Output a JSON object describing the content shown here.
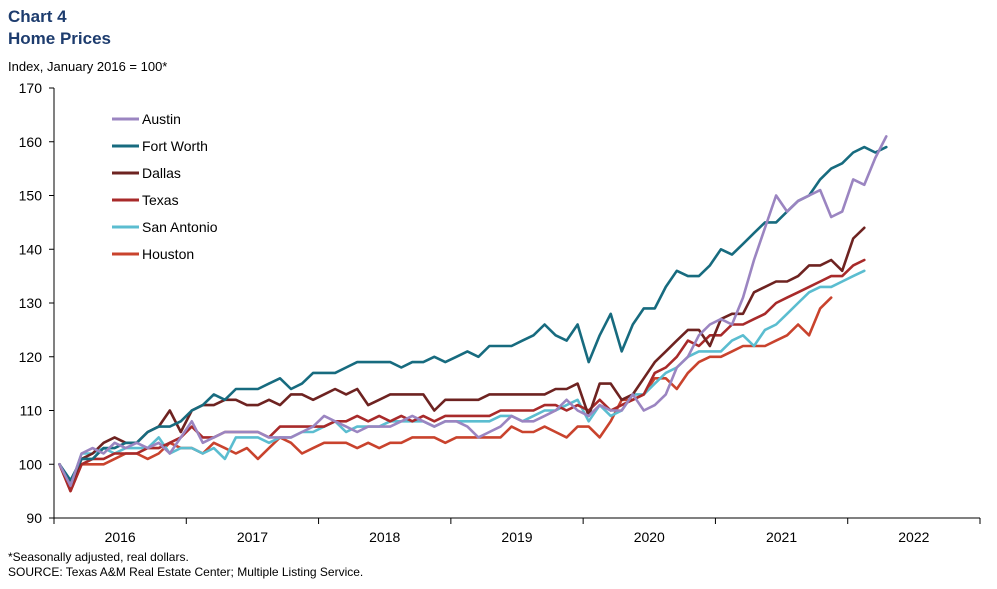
{
  "header": {
    "chart_label": "Chart 4",
    "title": "Home Prices",
    "subtitle": "Index, January 2016 = 100*"
  },
  "footer": {
    "note": "*Seasonally adjusted, real dollars.",
    "source": "SOURCE: Texas A&M Real Estate Center; Multiple Listing Service."
  },
  "chart_data": {
    "type": "line",
    "title": "Home Prices",
    "ylabel": "Index, January 2016 = 100*",
    "xlabel": "",
    "ylim": [
      90,
      170
    ],
    "yticks": [
      90,
      100,
      110,
      120,
      130,
      140,
      150,
      160,
      170
    ],
    "x_year_labels": [
      "2016",
      "2017",
      "2018",
      "2019",
      "2020",
      "2021",
      "2022"
    ],
    "x_start": "2016-01",
    "x_frequency": "monthly",
    "grid": false,
    "legend_position": "top-left",
    "series": [
      {
        "name": "Austin",
        "color": "#9b85c1",
        "values": [
          100,
          96,
          102,
          103,
          102,
          104,
          103,
          104,
          103,
          104,
          102,
          105,
          108,
          104,
          105,
          106,
          106,
          106,
          106,
          105,
          105,
          105,
          106,
          107,
          109,
          108,
          107,
          106,
          107,
          107,
          107,
          108,
          109,
          108,
          107,
          108,
          108,
          107,
          105,
          106,
          107,
          109,
          108,
          108,
          109,
          110,
          112,
          110,
          109,
          111,
          110,
          110,
          113,
          110,
          111,
          113,
          118,
          120,
          124,
          126,
          127,
          126,
          131,
          138,
          144,
          150,
          147,
          149,
          150,
          151,
          146,
          147,
          153,
          152,
          157,
          161
        ]
      },
      {
        "name": "Fort Worth",
        "color": "#176b7f",
        "values": [
          100,
          97,
          101,
          101,
          103,
          103,
          104,
          104,
          106,
          107,
          107,
          108,
          110,
          111,
          113,
          112,
          114,
          114,
          114,
          115,
          116,
          114,
          115,
          117,
          117,
          117,
          118,
          119,
          119,
          119,
          119,
          118,
          119,
          119,
          120,
          119,
          120,
          121,
          120,
          122,
          122,
          122,
          123,
          124,
          126,
          124,
          123,
          126,
          119,
          124,
          128,
          121,
          126,
          129,
          129,
          133,
          136,
          135,
          135,
          137,
          140,
          139,
          141,
          143,
          145,
          145,
          147,
          149,
          150,
          153,
          155,
          156,
          158,
          159,
          158,
          159
        ]
      },
      {
        "name": "Dallas",
        "color": "#6e2321",
        "values": [
          100,
          96,
          101,
          102,
          104,
          105,
          104,
          104,
          106,
          107,
          110,
          106,
          110,
          111,
          111,
          112,
          112,
          111,
          111,
          112,
          111,
          113,
          113,
          112,
          113,
          114,
          113,
          114,
          111,
          112,
          113,
          113,
          113,
          113,
          110,
          112,
          112,
          112,
          112,
          113,
          113,
          113,
          113,
          113,
          113,
          114,
          114,
          115,
          109,
          115,
          115,
          112,
          113,
          116,
          119,
          121,
          123,
          125,
          125,
          122,
          127,
          128,
          128,
          132,
          133,
          134,
          134,
          135,
          137,
          137,
          138,
          136,
          142,
          144
        ]
      },
      {
        "name": "Texas",
        "color": "#a82a2a",
        "values": [
          100,
          95,
          100,
          101,
          101,
          102,
          102,
          102,
          103,
          103,
          104,
          105,
          107,
          105,
          105,
          106,
          106,
          106,
          106,
          105,
          107,
          107,
          107,
          107,
          107,
          108,
          108,
          109,
          108,
          109,
          108,
          109,
          108,
          109,
          108,
          109,
          109,
          109,
          109,
          109,
          110,
          110,
          110,
          110,
          111,
          111,
          110,
          111,
          110,
          112,
          110,
          111,
          112,
          113,
          117,
          118,
          120,
          123,
          122,
          124,
          124,
          126,
          126,
          127,
          128,
          130,
          131,
          132,
          133,
          134,
          135,
          135,
          137,
          138
        ]
      },
      {
        "name": "San Antonio",
        "color": "#5bbdd0",
        "values": [
          100,
          96,
          102,
          102,
          103,
          102,
          103,
          103,
          103,
          105,
          102,
          103,
          103,
          102,
          103,
          101,
          105,
          105,
          105,
          104,
          105,
          105,
          106,
          106,
          107,
          108,
          106,
          107,
          107,
          107,
          108,
          108,
          108,
          108,
          107,
          108,
          108,
          108,
          108,
          108,
          109,
          109,
          108,
          109,
          110,
          110,
          111,
          112,
          108,
          111,
          109,
          110,
          113,
          113,
          115,
          117,
          118,
          120,
          121,
          121,
          121,
          123,
          124,
          122,
          125,
          126,
          128,
          130,
          132,
          133,
          133,
          134,
          135,
          136
        ]
      },
      {
        "name": "Houston",
        "color": "#c9432d",
        "values": [
          100,
          95,
          100,
          100,
          100,
          101,
          102,
          102,
          101,
          102,
          104,
          103,
          103,
          102,
          104,
          103,
          102,
          103,
          101,
          103,
          105,
          104,
          102,
          103,
          104,
          104,
          104,
          103,
          104,
          103,
          104,
          104,
          105,
          105,
          105,
          104,
          105,
          105,
          105,
          105,
          105,
          107,
          106,
          106,
          107,
          106,
          105,
          107,
          107,
          105,
          108,
          112,
          112,
          113,
          116,
          116,
          114,
          117,
          119,
          120,
          120,
          121,
          122,
          122,
          122,
          123,
          124,
          126,
          124,
          129,
          131
        ]
      }
    ]
  }
}
